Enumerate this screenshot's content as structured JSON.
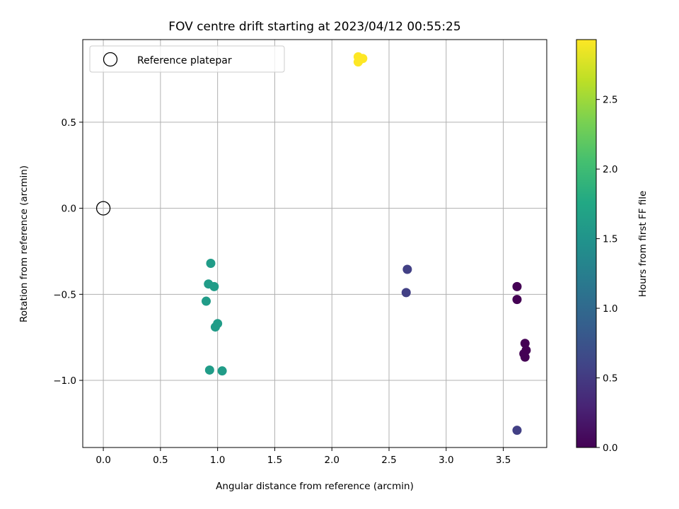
{
  "chart_data": {
    "type": "scatter",
    "title": "FOV centre drift starting at 2023/04/12 00:55:25",
    "xlabel": "Angular distance from reference (arcmin)",
    "ylabel": "Rotation from reference (arcmin)",
    "xlim": [
      -0.18,
      3.88
    ],
    "ylim": [
      -1.39,
      0.98
    ],
    "xticks": [
      {
        "value": 0.0,
        "label": "0.0"
      },
      {
        "value": 0.5,
        "label": "0.5"
      },
      {
        "value": 1.0,
        "label": "1.0"
      },
      {
        "value": 1.5,
        "label": "1.5"
      },
      {
        "value": 2.0,
        "label": "2.0"
      },
      {
        "value": 2.5,
        "label": "2.5"
      },
      {
        "value": 3.0,
        "label": "3.0"
      },
      {
        "value": 3.5,
        "label": "3.5"
      }
    ],
    "yticks": [
      {
        "value": 0.5,
        "label": "0.5"
      },
      {
        "value": 0.0,
        "label": "0.0"
      },
      {
        "value": -0.5,
        "label": "−0.5"
      },
      {
        "value": -1.0,
        "label": "−1.0"
      }
    ],
    "grid": true,
    "legend": {
      "position": "upper-left",
      "entries": [
        {
          "label": "Reference platepar",
          "marker": "open-circle"
        }
      ]
    },
    "reference_point": {
      "x": 0.0,
      "y": 0.0
    },
    "colorbar": {
      "label": "Hours from first FF file",
      "range": [
        0.0,
        2.93
      ],
      "colormap": "viridis",
      "ticks": [
        {
          "value": 0.0,
          "label": "0.0"
        },
        {
          "value": 0.5,
          "label": "0.5"
        },
        {
          "value": 1.0,
          "label": "1.0"
        },
        {
          "value": 1.5,
          "label": "1.5"
        },
        {
          "value": 2.0,
          "label": "2.0"
        },
        {
          "value": 2.5,
          "label": "2.5"
        }
      ]
    },
    "points": [
      {
        "x": 2.23,
        "y": 0.88,
        "hours": 2.93
      },
      {
        "x": 2.27,
        "y": 0.87,
        "hours": 2.93
      },
      {
        "x": 2.24,
        "y": 0.86,
        "hours": 2.93
      },
      {
        "x": 2.23,
        "y": 0.85,
        "hours": 2.93
      },
      {
        "x": 0.94,
        "y": -0.32,
        "hours": 1.6
      },
      {
        "x": 0.92,
        "y": -0.44,
        "hours": 1.6
      },
      {
        "x": 0.97,
        "y": -0.455,
        "hours": 1.6
      },
      {
        "x": 0.9,
        "y": -0.54,
        "hours": 1.6
      },
      {
        "x": 1.0,
        "y": -0.67,
        "hours": 1.6
      },
      {
        "x": 0.98,
        "y": -0.69,
        "hours": 1.6
      },
      {
        "x": 0.93,
        "y": -0.94,
        "hours": 1.6
      },
      {
        "x": 1.04,
        "y": -0.945,
        "hours": 1.6
      },
      {
        "x": 2.66,
        "y": -0.355,
        "hours": 0.55
      },
      {
        "x": 2.65,
        "y": -0.49,
        "hours": 0.55
      },
      {
        "x": 3.62,
        "y": -1.29,
        "hours": 0.55
      },
      {
        "x": 3.62,
        "y": -0.455,
        "hours": 0.0
      },
      {
        "x": 3.62,
        "y": -0.53,
        "hours": 0.0
      },
      {
        "x": 3.69,
        "y": -0.785,
        "hours": 0.0
      },
      {
        "x": 3.7,
        "y": -0.825,
        "hours": 0.0
      },
      {
        "x": 3.68,
        "y": -0.845,
        "hours": 0.0
      },
      {
        "x": 3.69,
        "y": -0.865,
        "hours": 0.0
      }
    ]
  }
}
